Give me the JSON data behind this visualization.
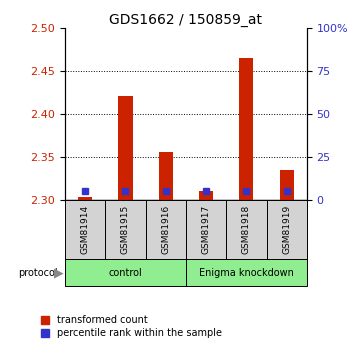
{
  "title": "GDS1662 / 150859_at",
  "samples": [
    "GSM81914",
    "GSM81915",
    "GSM81916",
    "GSM81917",
    "GSM81918",
    "GSM81919"
  ],
  "red_values": [
    2.304,
    2.421,
    2.356,
    2.31,
    2.465,
    2.335
  ],
  "blue_percentiles": [
    5.5,
    5.5,
    5.5,
    5.5,
    5.5,
    5.5
  ],
  "y_min": 2.3,
  "y_max": 2.5,
  "y_ticks": [
    2.3,
    2.35,
    2.4,
    2.45,
    2.5
  ],
  "right_y_ticks": [
    0,
    25,
    50,
    75,
    100
  ],
  "right_y_labels": [
    "0",
    "25",
    "50",
    "75",
    "100%"
  ],
  "groups": [
    {
      "label": "control",
      "start": 0,
      "end": 3,
      "color": "#90ee90"
    },
    {
      "label": "Enigma knockdown",
      "start": 3,
      "end": 6,
      "color": "#90ee90"
    }
  ],
  "bar_color": "#cc2200",
  "blue_color": "#3333cc",
  "tick_label_color_left": "#cc2200",
  "tick_label_color_right": "#3333cc",
  "legend_items": [
    {
      "label": "transformed count",
      "color": "#cc2200"
    },
    {
      "label": "percentile rank within the sample",
      "color": "#3333cc"
    }
  ],
  "figwidth": 3.61,
  "figheight": 3.45,
  "dpi": 100
}
